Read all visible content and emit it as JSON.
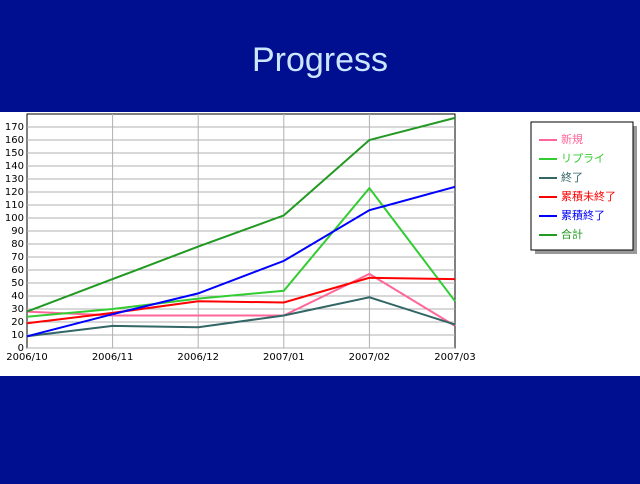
{
  "chart_data": {
    "type": "line",
    "title": "Progress",
    "categories": [
      "2006/10",
      "2006/11",
      "2006/12",
      "2007/01",
      "2007/02",
      "2007/03"
    ],
    "series": [
      {
        "name": "新規",
        "color": "#ff6699",
        "values": [
          28,
          25,
          25,
          25,
          57,
          17
        ]
      },
      {
        "name": "リプライ",
        "color": "#33cc33",
        "values": [
          24,
          30,
          38,
          44,
          123,
          36
        ]
      },
      {
        "name": "終了",
        "color": "#336666",
        "values": [
          9,
          17,
          16,
          25,
          39,
          18
        ]
      },
      {
        "name": "累積未終了",
        "color": "#ff0000",
        "values": [
          19,
          27,
          36,
          35,
          54,
          53
        ]
      },
      {
        "name": "累積終了",
        "color": "#0000ff",
        "values": [
          9,
          26,
          42,
          67,
          106,
          124
        ]
      },
      {
        "name": "合計",
        "color": "#229922",
        "values": [
          28,
          53,
          78,
          102,
          160,
          177
        ]
      }
    ],
    "ylim": [
      0,
      180
    ],
    "yticks": [
      0,
      10,
      20,
      30,
      40,
      50,
      60,
      70,
      80,
      90,
      100,
      110,
      120,
      130,
      140,
      150,
      160,
      170
    ],
    "grid": true,
    "legend": "right"
  }
}
